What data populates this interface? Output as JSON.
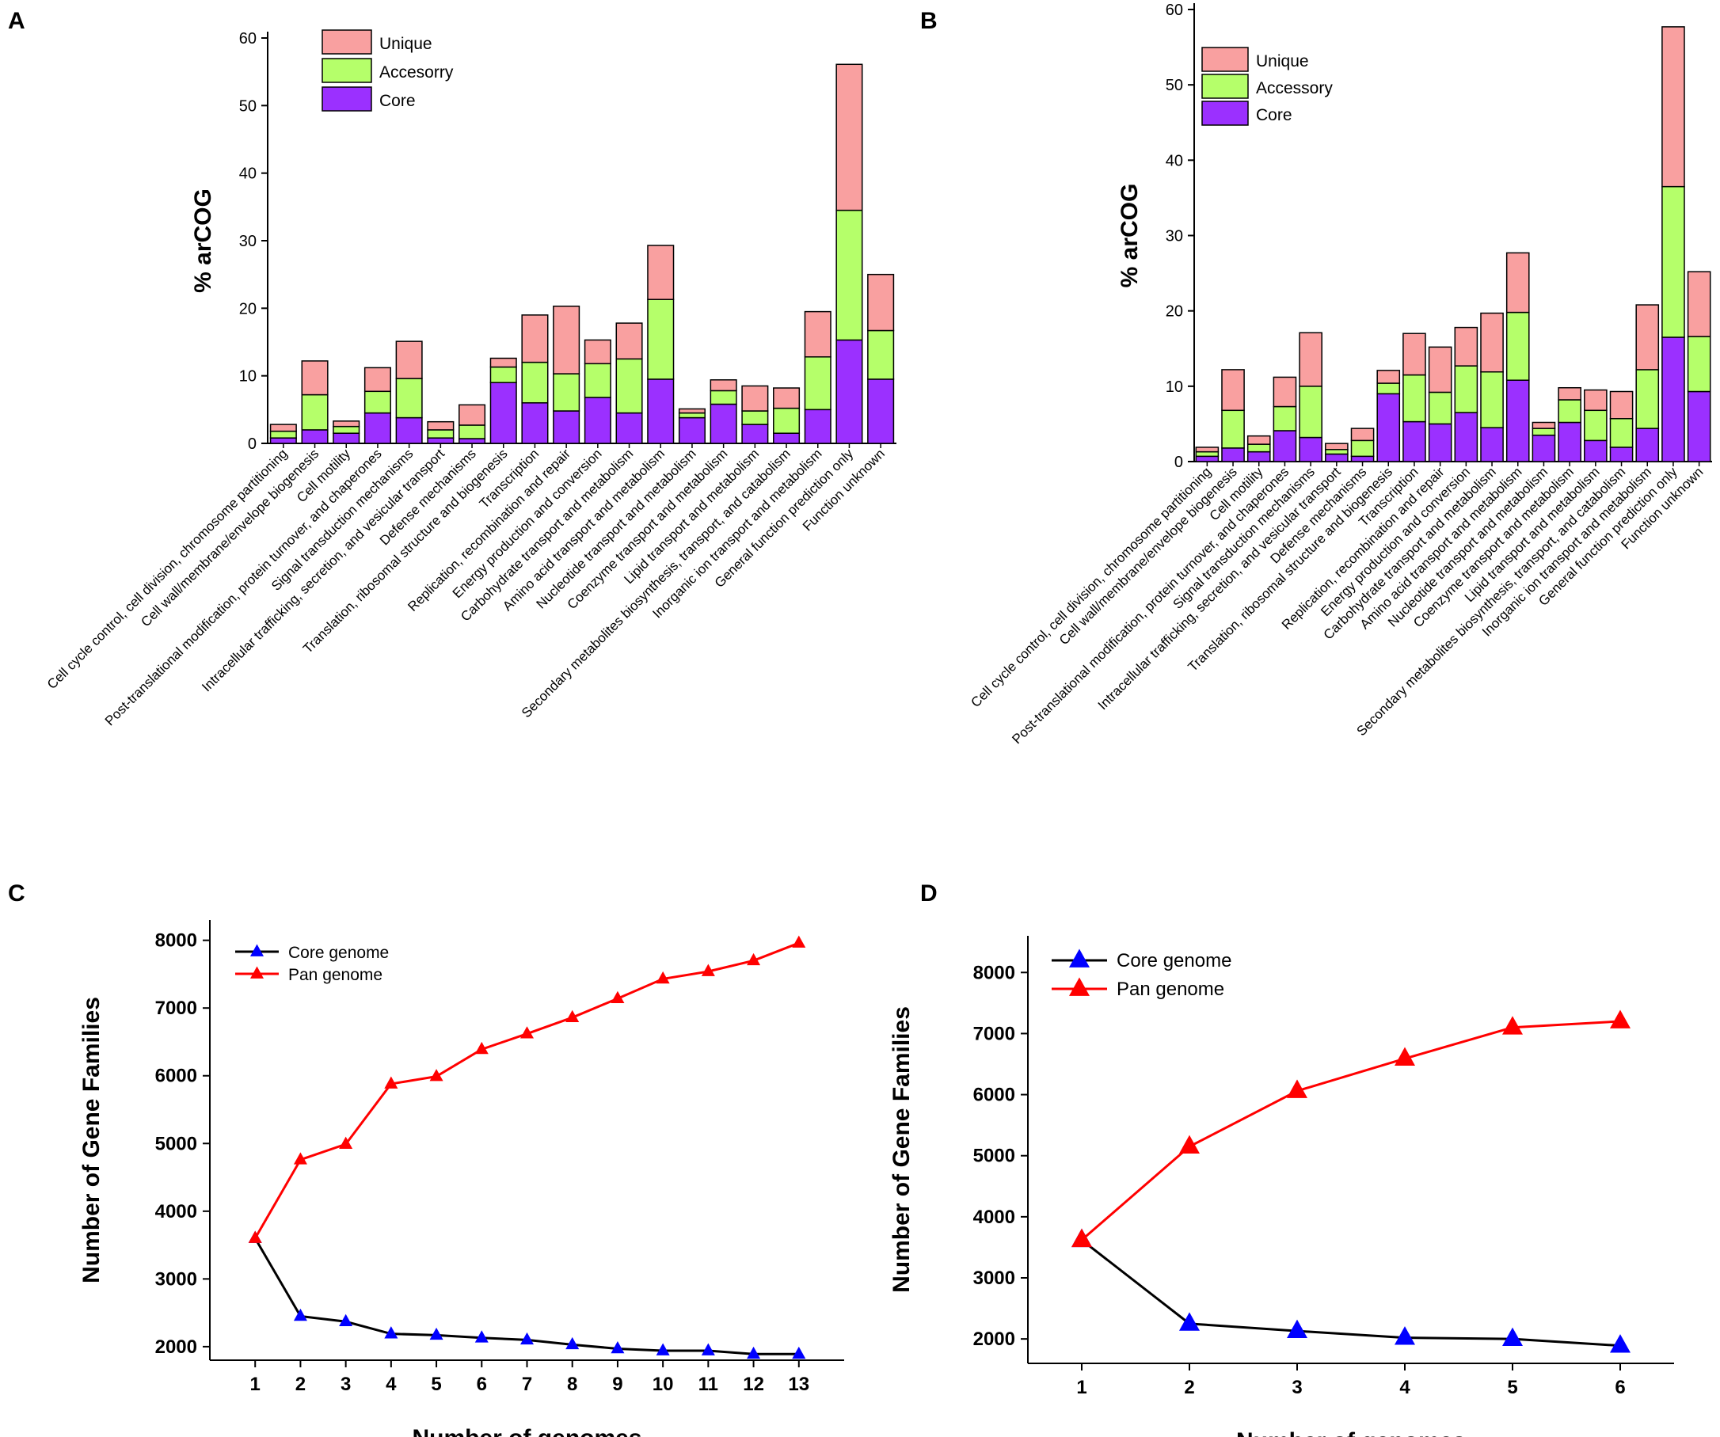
{
  "chart_data": [
    {
      "panel": "A",
      "type": "bar",
      "stacked": true,
      "ylabel": "% arCOG",
      "ylim": [
        0,
        60
      ],
      "yticks": [
        0,
        10,
        20,
        30,
        40,
        50,
        60
      ],
      "legend": [
        "Unique",
        "Accesorry",
        "Core"
      ],
      "categories": [
        "Cell cycle control, cell division, chromosome partitioning",
        "Cell wall/membrane/envelope biogenesis",
        "Cell motility",
        "Post-translational modification, protein turnover, and chaperones",
        "Signal transduction mechanisms",
        "Intracellular trafficking, secretion, and vesicular transport",
        "Defense mechanisms",
        "Translation, ribosomal structure and biogenesis",
        "Transcription",
        "Replication, recombination and repair",
        "Energy production and conversion",
        "Carbohydrate transport and metabolism",
        "Amino acid transport and metabolism",
        "Nucleotide transport and metabolism",
        "Coenzyme transport and metabolism",
        "Lipid transport and metabolism",
        "Secondary metabolites biosynthesis, transport, and catabolism",
        "Inorganic ion transport and metabolism",
        "General function prediction only",
        "Function unknown"
      ],
      "series": [
        {
          "name": "Core",
          "values": [
            0.8,
            2.0,
            1.5,
            4.5,
            3.8,
            0.8,
            0.7,
            9.0,
            6.0,
            4.8,
            6.8,
            4.5,
            9.5,
            3.8,
            5.8,
            2.8,
            1.5,
            5.0,
            15.3,
            9.5
          ]
        },
        {
          "name": "Accesorry",
          "values": [
            1.0,
            5.2,
            1.0,
            3.2,
            5.8,
            1.2,
            2.0,
            2.3,
            6.0,
            5.5,
            5.0,
            8.0,
            11.8,
            0.7,
            2.0,
            2.0,
            3.7,
            7.8,
            19.2,
            7.2
          ]
        },
        {
          "name": "Unique",
          "values": [
            1.0,
            5.0,
            0.8,
            3.5,
            5.5,
            1.2,
            3.0,
            1.3,
            7.0,
            10.0,
            3.5,
            5.3,
            8.0,
            0.6,
            1.6,
            3.7,
            3.0,
            6.7,
            21.6,
            8.3
          ]
        }
      ]
    },
    {
      "panel": "B",
      "type": "bar",
      "stacked": true,
      "ylabel": "% arCOG",
      "ylim": [
        0,
        60
      ],
      "yticks": [
        0,
        10,
        20,
        30,
        40,
        50,
        60
      ],
      "legend": [
        "Unique",
        "Accessory",
        "Core"
      ],
      "categories": [
        "Cell cycle control, cell division, chromosome partitioning",
        "Cell wall/membrane/envelope biogenesis",
        "Cell motility",
        "Post-translational modification, protein turnover, and chaperones",
        "Signal transduction mechanisms",
        "Intracellular trafficking, secretion, and vesicular transport",
        "Defense mechanisms",
        "Translation, ribosomal structure and biogenesis",
        "Transcription",
        "Replication, recombination and repair",
        "Energy production and conversion",
        "Carbohydrate transport and metabolism",
        "Amino acid transport and metabolism",
        "Nucleotide transport and metabolism",
        "Coenzyme transport and metabolism",
        "Lipid transport and metabolism",
        "Secondary metabolites biosynthesis, transport, and catabolism",
        "Inorganic ion transport and metabolism",
        "General function prediction only",
        "Function unknown"
      ],
      "series": [
        {
          "name": "Core",
          "values": [
            0.7,
            1.8,
            1.3,
            4.1,
            3.2,
            1.0,
            0.7,
            9.0,
            5.3,
            5.0,
            6.5,
            4.5,
            10.8,
            3.5,
            5.2,
            2.8,
            1.9,
            4.4,
            16.5,
            9.3
          ]
        },
        {
          "name": "Accessory",
          "values": [
            0.6,
            5.0,
            1.0,
            3.2,
            6.8,
            0.6,
            2.1,
            1.4,
            6.2,
            4.2,
            6.2,
            7.4,
            9.0,
            0.9,
            3.0,
            4.0,
            3.8,
            7.8,
            20.0,
            7.3
          ]
        },
        {
          "name": "Unique",
          "values": [
            0.6,
            5.4,
            1.1,
            3.9,
            7.1,
            0.8,
            1.6,
            1.7,
            5.5,
            6.0,
            5.1,
            7.8,
            7.9,
            0.8,
            1.6,
            2.7,
            3.6,
            8.6,
            21.2,
            8.6
          ]
        }
      ]
    },
    {
      "panel": "C",
      "type": "line",
      "xlabel": "Number of genomes",
      "ylabel": "Number of Gene Families",
      "xlim": [
        0,
        14
      ],
      "ylim": [
        1800,
        8300
      ],
      "x": [
        1,
        2,
        3,
        4,
        5,
        6,
        7,
        8,
        9,
        10,
        11,
        12,
        13
      ],
      "yticks": [
        2000,
        3000,
        4000,
        5000,
        6000,
        7000,
        8000
      ],
      "series": [
        {
          "name": "Core genome",
          "color": "#0000ff",
          "values": [
            3600,
            2450,
            2370,
            2190,
            2170,
            2130,
            2100,
            2030,
            1970,
            1940,
            1940,
            1890,
            1890
          ]
        },
        {
          "name": "Pan genome",
          "color": "#ff0000",
          "values": [
            3600,
            4760,
            4990,
            5880,
            5990,
            6390,
            6620,
            6860,
            7140,
            7430,
            7540,
            7700,
            7960
          ]
        }
      ]
    },
    {
      "panel": "D",
      "type": "line",
      "xlabel": "Number of genomes",
      "ylabel": "Number of Gene Families",
      "xlim": [
        0.5,
        6.5
      ],
      "ylim": [
        1600,
        8600
      ],
      "x": [
        1,
        2,
        3,
        4,
        5,
        6
      ],
      "yticks": [
        2000,
        3000,
        4000,
        5000,
        6000,
        7000,
        8000
      ],
      "series": [
        {
          "name": "Core genome",
          "color": "#0000ff",
          "values": [
            3620,
            2250,
            2130,
            2020,
            2000,
            1890
          ]
        },
        {
          "name": "Pan genome",
          "color": "#ff0000",
          "values": [
            3620,
            5150,
            6060,
            6590,
            7100,
            7200
          ]
        }
      ]
    }
  ],
  "colors": {
    "core": "#9b30ff",
    "accessory": "#b5ff6a",
    "unique": "#f9a0a0",
    "core_line": "#0000ff",
    "pan_line": "#ff0000"
  }
}
